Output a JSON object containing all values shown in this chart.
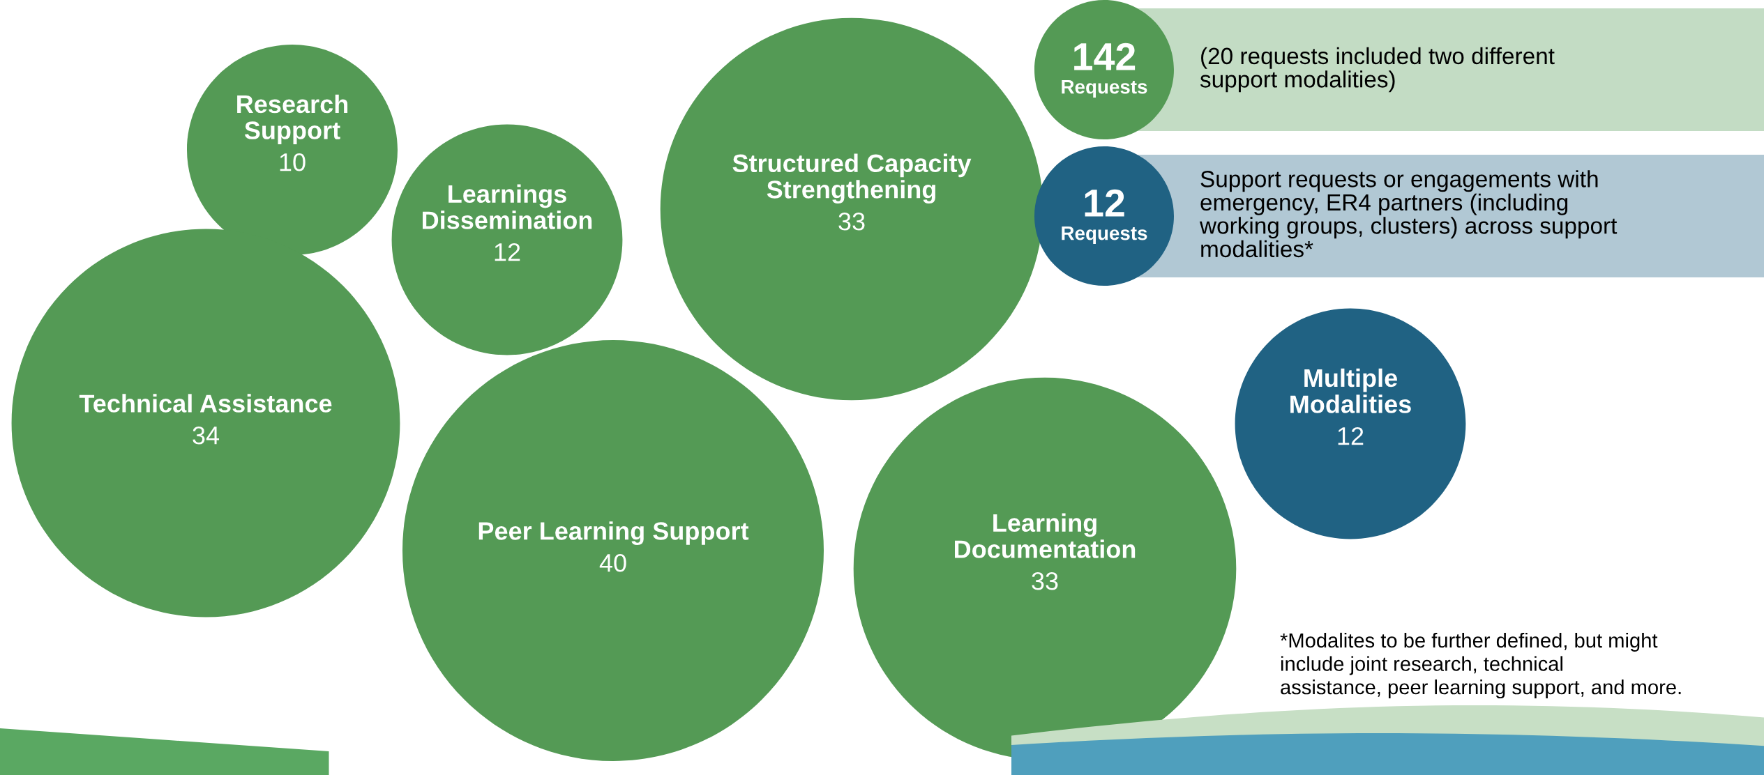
{
  "chart_data": {
    "type": "other",
    "categories": [
      "Research Support",
      "Learnings Dissemination",
      "Structured Capacity Strengthening",
      "Technical Assistance",
      "Peer Learning Support",
      "Learning Documentation",
      "Multiple Modalities"
    ],
    "values": [
      10,
      12,
      33,
      34,
      40,
      33,
      12
    ],
    "data_labels": true,
    "colors": [
      "#549a55",
      "#549a55",
      "#549a55",
      "#549a55",
      "#549a55",
      "#549a55",
      "#206283"
    ],
    "annotations": [
      "142",
      "Requests",
      "(20 requests included two different support modalities)",
      "12",
      "Requests",
      "Support requests or engagements with emergency, ER4 partners (including working groups, clusters) across support modalities*",
      "*Modalites to be further defined, but might include joint research, technical assistance, peer learning support, and more."
    ]
  }
}
